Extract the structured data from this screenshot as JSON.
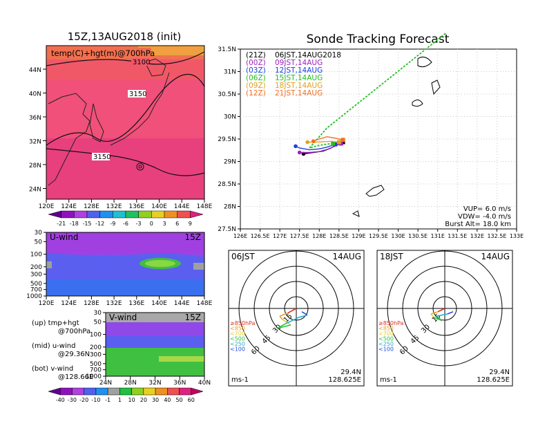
{
  "map_panel": {
    "title": "15Z,13AUG2018 (init)",
    "field_label": "temp(C)+hgt(m)@700hPa",
    "lat_ticks": [
      "44N",
      "40N",
      "36N",
      "32N",
      "28N",
      "24N"
    ],
    "lon_ticks": [
      "120E",
      "124E",
      "128E",
      "132E",
      "136E",
      "140E",
      "144E",
      "148E"
    ],
    "contour_labels": [
      "3100",
      "3150",
      "3150"
    ],
    "colorbar_ticks": [
      "-21",
      "-18",
      "-15",
      "-12",
      "-9",
      "-6",
      "-3",
      "0",
      "3",
      "6",
      "9"
    ]
  },
  "u_panel": {
    "label": "U-wind",
    "time": "15Z",
    "pres_ticks": [
      "30",
      "50",
      "100",
      "200",
      "300",
      "500",
      "700",
      "1000"
    ],
    "lon_ticks": [
      "120E",
      "124E",
      "128E",
      "132E",
      "136E",
      "140E",
      "144E",
      "148E"
    ]
  },
  "v_panel": {
    "label": "V-wind",
    "time": "15Z",
    "pres_ticks": [
      "30",
      "50",
      "100",
      "200",
      "300",
      "500",
      "700",
      "1000"
    ],
    "lat_ticks": [
      "24N",
      "28N",
      "32N",
      "36N",
      "40N"
    ],
    "colorbar_ticks": [
      "-40",
      "-30",
      "-20",
      "-10",
      "-1",
      "1",
      "10",
      "20",
      "30",
      "40",
      "50",
      "60"
    ]
  },
  "descriptions": [
    {
      "line1": "(up) tmp+hgt",
      "line2": "@700hPa"
    },
    {
      "line1": "(mid) u-wind",
      "line2": "@29.36N"
    },
    {
      "line1": "(bot) v-wind",
      "line2": "@128.66E"
    }
  ],
  "track_panel": {
    "title": "Sonde Tracking Forecast",
    "lat_ticks": [
      "31.5N",
      "31N",
      "30.5N",
      "30N",
      "29.5N",
      "29N",
      "28.5N",
      "28N",
      "27.5N"
    ],
    "lon_ticks": [
      "126E",
      "126.5E",
      "127E",
      "127.5E",
      "128E",
      "128.5E",
      "129E",
      "129.5E",
      "130E",
      "130.5E",
      "131E",
      "131.5E",
      "132E",
      "132.5E",
      "133E"
    ],
    "legend": [
      {
        "code": "(21Z)",
        "text": "06JST,14AUG2018",
        "color": "#000000"
      },
      {
        "code": "(00Z)",
        "text": "09JST,14AUG",
        "color": "#a020c0"
      },
      {
        "code": "(03Z)",
        "text": "12JST,14AUG",
        "color": "#2040e0"
      },
      {
        "code": "(06Z)",
        "text": "15JST,14AUG",
        "color": "#20c020"
      },
      {
        "code": "(09Z)",
        "text": "18JST,14AUG",
        "color": "#e0a020"
      },
      {
        "code": "(12Z)",
        "text": "21JST,14AUG",
        "color": "#f07020"
      }
    ],
    "params": [
      "VUP= 6.0 m/s",
      "VDW= -4.0 m/s",
      "Burst Alt= 18.0 km"
    ]
  },
  "hodographs": [
    {
      "time": "06JST",
      "date": "14AUG",
      "lat": "29.4N",
      "lon": "128.625E",
      "unit": "ms-1",
      "ring_labels": [
        "15",
        "30",
        "45",
        "60"
      ],
      "levels": [
        {
          "label": "≥850hPa",
          "color": "#e03020"
        },
        {
          "label": "<850",
          "color": "#f0a020"
        },
        {
          "label": "<700",
          "color": "#e8d020"
        },
        {
          "label": "<500",
          "color": "#30c040"
        },
        {
          "label": "<250",
          "color": "#20b0d0"
        },
        {
          "label": "<100",
          "color": "#2050e0"
        }
      ]
    },
    {
      "time": "18JST",
      "date": "14AUG",
      "lat": "29.4N",
      "lon": "128.625E",
      "unit": "ms-1",
      "ring_labels": [
        "15",
        "30",
        "45",
        "60"
      ],
      "levels": [
        {
          "label": "≥850hPa",
          "color": "#e03020"
        },
        {
          "label": "<850",
          "color": "#f0a020"
        },
        {
          "label": "<700",
          "color": "#e8d020"
        },
        {
          "label": "<500",
          "color": "#30c040"
        },
        {
          "label": "<250",
          "color": "#20b0d0"
        },
        {
          "label": "<100",
          "color": "#2050e0"
        }
      ]
    }
  ],
  "chart_data": [
    {
      "type": "heatmap",
      "title": "15Z,13AUG2018 (init)",
      "field": "temp(C)+hgt(m)@700hPa",
      "xlim": [
        "120E",
        "148E"
      ],
      "ylim": [
        "24N",
        "44N"
      ],
      "colorbar": {
        "ticks": [
          -21,
          -18,
          -15,
          -12,
          -9,
          -6,
          -3,
          0,
          3,
          6,
          9
        ],
        "colors": [
          "#600090",
          "#9010c0",
          "#b040e0",
          "#5060f0",
          "#2090f0",
          "#20c0d0",
          "#20c060",
          "#90d020",
          "#e8d020",
          "#f09020",
          "#f05050",
          "#e02080"
        ]
      }
    },
    {
      "type": "heatmap",
      "title": "U-wind",
      "time": "15Z",
      "xlim": [
        "120E",
        "148E"
      ],
      "ylim_hpa": [
        1000,
        30
      ]
    },
    {
      "type": "heatmap",
      "title": "V-wind",
      "time": "15Z",
      "xlim": [
        "24N",
        "40N"
      ],
      "ylim_hpa": [
        1000,
        30
      ],
      "colorbar": {
        "ticks": [
          -40,
          -30,
          -20,
          -10,
          -1,
          1,
          10,
          20,
          30,
          40,
          50,
          60
        ],
        "colors": [
          "#600090",
          "#9010c0",
          "#b040e0",
          "#5060f0",
          "#2090f0",
          "#a0a0a0",
          "#20c040",
          "#90d020",
          "#e8d020",
          "#f09020",
          "#f05050",
          "#e02080",
          "#c00060"
        ]
      }
    },
    {
      "type": "line",
      "title": "Sonde Tracking Forecast",
      "xlim": [
        126,
        133
      ],
      "ylim": [
        27.5,
        31.5
      ],
      "series": [
        {
          "name": "(21Z) 06JST,14AUG2018",
          "color": "#000000",
          "points": [
            [
              128.6,
              29.43
            ],
            [
              128.45,
              29.38
            ],
            [
              128.3,
              29.3
            ],
            [
              128.1,
              29.23
            ],
            [
              127.85,
              29.2
            ],
            [
              127.6,
              29.17
            ]
          ]
        },
        {
          "name": "(00Z) 09JST,14AUG",
          "color": "#a020c0",
          "points": [
            [
              128.55,
              29.4
            ],
            [
              128.4,
              29.34
            ],
            [
              128.2,
              29.27
            ],
            [
              128.0,
              29.22
            ],
            [
              127.75,
              29.2
            ],
            [
              127.5,
              29.2
            ]
          ]
        },
        {
          "name": "(03Z) 12JST,14AUG",
          "color": "#2040e0",
          "points": [
            [
              128.4,
              29.38
            ],
            [
              128.2,
              29.32
            ],
            [
              128.0,
              29.28
            ],
            [
              127.75,
              29.26
            ],
            [
              127.5,
              29.3
            ],
            [
              127.4,
              29.34
            ]
          ]
        },
        {
          "name": "(06Z) 15JST,14AUG",
          "color": "#20c020",
          "points": [
            [
              128.35,
              29.4
            ],
            [
              128.15,
              29.38
            ],
            [
              127.95,
              29.35
            ],
            [
              127.75,
              29.3
            ],
            [
              128.2,
              29.75
            ],
            [
              129.2,
              30.45
            ],
            [
              130.2,
              31.15
            ],
            [
              131.2,
              31.85
            ]
          ]
        },
        {
          "name": "(09Z) 18JST,14AUG",
          "color": "#e0a020",
          "points": [
            [
              128.5,
              29.43
            ],
            [
              128.3,
              29.45
            ],
            [
              128.1,
              29.44
            ],
            [
              127.9,
              29.43
            ],
            [
              127.7,
              29.43
            ]
          ]
        },
        {
          "name": "(12Z) 21JST,14AUG",
          "color": "#f07020",
          "points": [
            [
              128.6,
              29.48
            ],
            [
              128.4,
              29.52
            ],
            [
              128.2,
              29.55
            ],
            [
              128.0,
              29.5
            ],
            [
              127.85,
              29.45
            ]
          ]
        }
      ]
    }
  ]
}
